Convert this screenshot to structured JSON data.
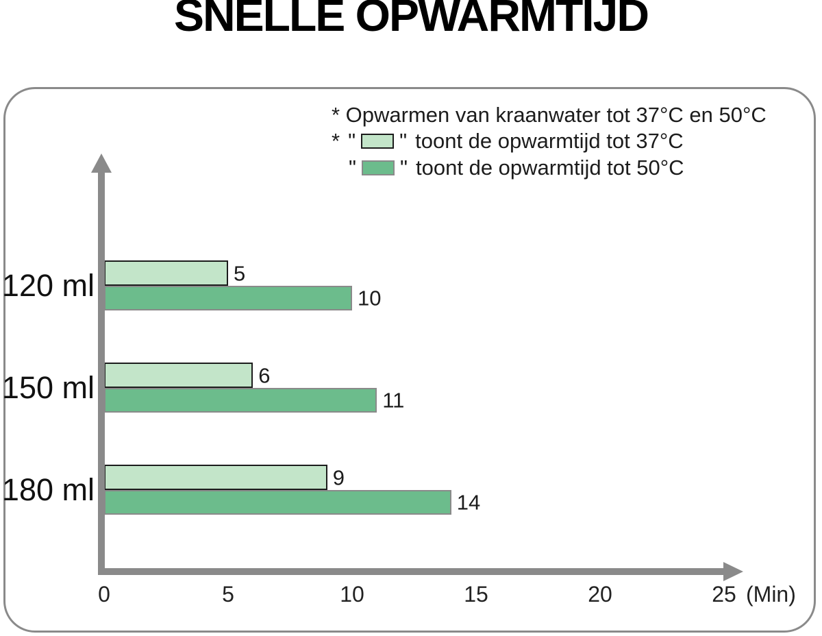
{
  "title": "SNELLE OPWARMTIJD",
  "legend": {
    "note": "* Opwarmen van kraanwater tot 37°C en 50°C",
    "item37": {
      "bullet": "*",
      "quote": "\"",
      "label": "toont de opwarmtijd tot 37°C"
    },
    "item50": {
      "quote": "\"",
      "label": "toont de opwarmtijd tot 50°C"
    }
  },
  "colors": {
    "bar_37": "#c3e5c9",
    "bar_37_border": "#1c1c1c",
    "bar_50": "#6cbc8c",
    "bar_50_border": "#8a8a8a",
    "axis": "#8a8a8a",
    "panel_border": "#8a8a8a",
    "text": "#1c1c1c"
  },
  "chart_data": {
    "type": "bar",
    "orientation": "horizontal",
    "title": "SNELLE OPWARMTIJD",
    "categories": [
      "120 ml",
      "150 ml",
      "180 ml"
    ],
    "series": [
      {
        "name": "toont de opwarmtijd tot 37°C",
        "color": "#c3e5c9",
        "values": [
          5,
          6,
          9
        ]
      },
      {
        "name": "toont de opwarmtijd tot 50°C",
        "color": "#6cbc8c",
        "values": [
          10,
          11,
          14
        ]
      }
    ],
    "xlabel": "(Min)",
    "x_ticks": [
      0,
      5,
      10,
      15,
      20,
      25
    ],
    "xlim": [
      0,
      25
    ],
    "ylabel": "",
    "grid": false,
    "value_labels": true,
    "legend_position": "top-right"
  }
}
